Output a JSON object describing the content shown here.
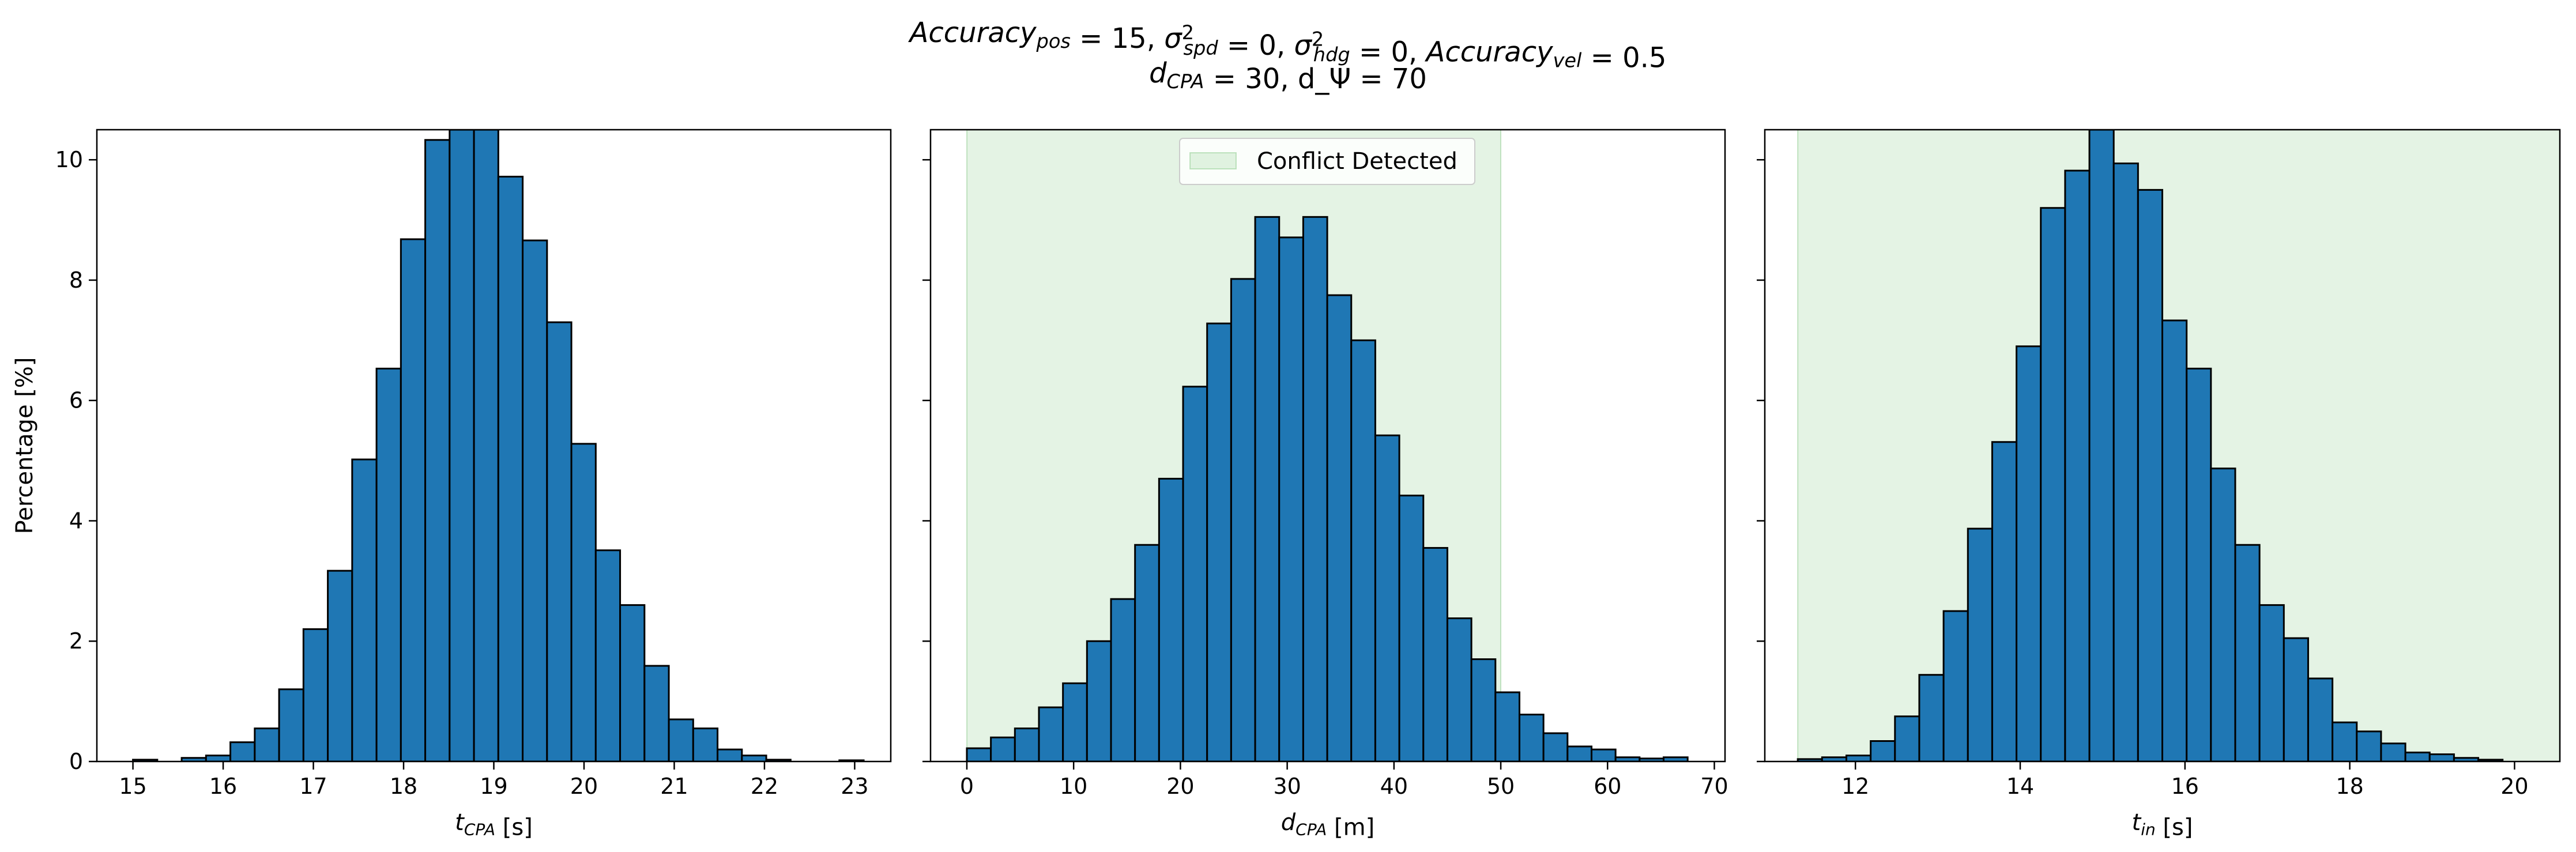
{
  "figure": {
    "title_line1": "Accuracy_pos = 15, σ²_spd = 0, σ²_hdg = 0, Accuracy_vel = 0.5",
    "title_line2": "d_CPA = 30, d_Ψ = 70"
  },
  "colors": {
    "bar": "#1f77b4",
    "edge": "#000000",
    "conflict_fill": "#2ca02c"
  },
  "chart_data": [
    {
      "type": "bar",
      "xlabel": "t_CPA [s]",
      "ylabel": "Percentage [%]",
      "xlim": [
        14.6,
        23.4
      ],
      "ylim": [
        0,
        10.5
      ],
      "xticks": [
        15,
        16,
        17,
        18,
        19,
        20,
        21,
        22,
        23
      ],
      "yticks": [
        0,
        2,
        4,
        6,
        8,
        10
      ],
      "bin_start": 15.0,
      "bin_width": 0.27,
      "values": [
        0.03,
        0.0,
        0.06,
        0.1,
        0.32,
        0.55,
        1.2,
        2.2,
        3.17,
        5.02,
        6.53,
        8.68,
        10.33,
        10.5,
        10.5,
        9.72,
        8.66,
        7.3,
        5.28,
        3.51,
        2.6,
        1.59,
        0.7,
        0.55,
        0.2,
        0.1,
        0.03,
        0.0,
        0.0,
        0.02
      ]
    },
    {
      "type": "bar",
      "xlabel": "d_CPA [m]",
      "xlim": [
        -3.4,
        71.0
      ],
      "ylim": [
        0,
        10.5
      ],
      "xticks": [
        0,
        10,
        20,
        30,
        40,
        50,
        60,
        70
      ],
      "yticks": [
        0,
        2,
        4,
        6,
        8,
        10
      ],
      "bin_start": 0.0,
      "bin_width": 2.25,
      "values": [
        0.22,
        0.4,
        0.55,
        0.9,
        1.3,
        2.0,
        2.7,
        3.6,
        4.7,
        6.23,
        7.28,
        8.02,
        9.05,
        8.71,
        9.05,
        7.75,
        7.0,
        5.42,
        4.42,
        3.55,
        2.38,
        1.7,
        1.15,
        0.78,
        0.47,
        0.25,
        0.2,
        0.07,
        0.05,
        0.07
      ],
      "conflict_region": [
        0,
        50
      ],
      "legend": {
        "label": "Conflict Detected",
        "position": "upper center"
      }
    },
    {
      "type": "bar",
      "xlabel": "t_in [s]",
      "xlim": [
        10.9,
        20.55
      ],
      "ylim": [
        0,
        10.5
      ],
      "xticks": [
        12,
        14,
        16,
        18,
        20
      ],
      "yticks": [
        0,
        2,
        4,
        6,
        8,
        10
      ],
      "bin_start": 11.3,
      "bin_width": 0.295,
      "values": [
        0.04,
        0.07,
        0.1,
        0.34,
        0.75,
        1.44,
        2.5,
        3.87,
        5.31,
        6.9,
        9.2,
        9.82,
        10.5,
        9.94,
        9.5,
        7.33,
        6.53,
        4.87,
        3.6,
        2.6,
        2.05,
        1.38,
        0.65,
        0.5,
        0.3,
        0.15,
        0.12,
        0.06,
        0.03
      ],
      "conflict_region": [
        11.3,
        20.55
      ]
    }
  ]
}
